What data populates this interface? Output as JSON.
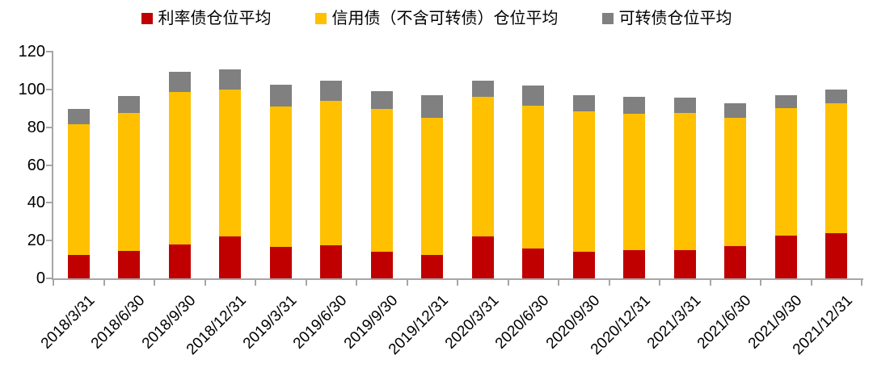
{
  "chart_data": {
    "type": "bar",
    "stacked": true,
    "title": "",
    "categories": [
      "2018/3/31",
      "2018/6/30",
      "2018/9/30",
      "2018/12/31",
      "2019/3/31",
      "2019/6/30",
      "2019/9/30",
      "2019/12/31",
      "2020/3/31",
      "2020/6/30",
      "2020/9/30",
      "2020/12/31",
      "2021/3/31",
      "2021/6/30",
      "2021/9/30",
      "2021/12/31"
    ],
    "series": [
      {
        "name": "利率债仓位平均",
        "color": "#C00000",
        "values": [
          12.5,
          14.5,
          18,
          22,
          16.5,
          17.5,
          14,
          12.5,
          22,
          16,
          14,
          15,
          15,
          17,
          22.5,
          24
        ]
      },
      {
        "name": "信用债（不含可转债）仓位平均",
        "color": "#FFC000",
        "values": [
          69,
          73,
          80.5,
          78,
          74.5,
          76.5,
          75.5,
          72.5,
          74,
          75.5,
          74.5,
          72,
          72.5,
          68,
          67.5,
          68.5
        ]
      },
      {
        "name": "可转债仓位平均",
        "color": "#808080",
        "values": [
          8,
          9,
          11,
          10.5,
          11.5,
          10.5,
          9.5,
          12,
          8.5,
          10.5,
          8.5,
          9,
          8,
          7.5,
          7,
          7.5
        ]
      }
    ],
    "ylim": [
      0,
      120
    ],
    "yticks": [
      0,
      20,
      40,
      60,
      80,
      100,
      120
    ],
    "grid": false,
    "legend_position": "top",
    "axis_color": "#A6A6A6",
    "text_color": "#000000",
    "background": "#FFFFFF"
  }
}
